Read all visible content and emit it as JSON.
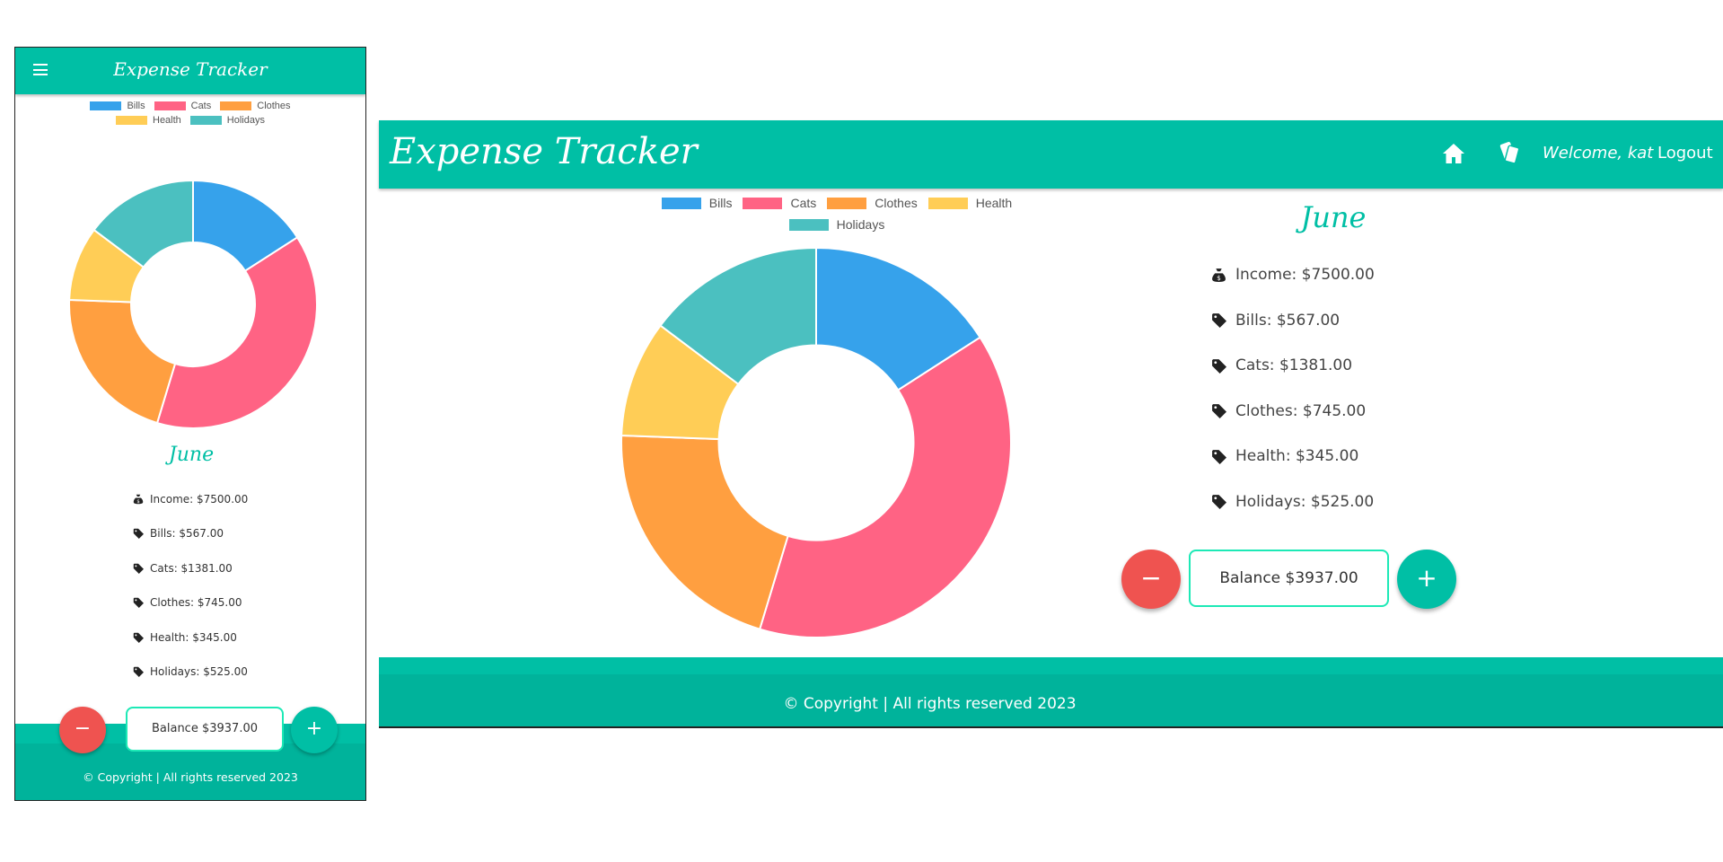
{
  "app": {
    "title": "Expense Tracker",
    "welcome": "Welcome, kat",
    "logout": "Logout"
  },
  "summary": {
    "month": "June",
    "rows": [
      {
        "icon": "money-bag-icon",
        "label": "Income: $7500.00"
      },
      {
        "icon": "tag-icon",
        "label": "Bills: $567.00"
      },
      {
        "icon": "tag-icon",
        "label": "Cats: $1381.00"
      },
      {
        "icon": "tag-icon",
        "label": "Clothes: $745.00"
      },
      {
        "icon": "tag-icon",
        "label": "Health: $345.00"
      },
      {
        "icon": "tag-icon",
        "label": "Holidays: $525.00"
      }
    ],
    "balance": "Balance $3937.00",
    "minus_label": "−",
    "plus_label": "+"
  },
  "footer": {
    "copyright": "© Copyright | All rights reserved 2023"
  },
  "colors": {
    "brand": "#00bfa5",
    "minus": "#ef5350",
    "balance_border": "#1de9b6"
  },
  "chart_data": {
    "type": "pie",
    "style": "doughnut",
    "legend": "top",
    "categories": [
      "Bills",
      "Cats",
      "Clothes",
      "Health",
      "Holidays"
    ],
    "values": [
      567,
      1381,
      745,
      345,
      525
    ],
    "colors": [
      "#36a2eb",
      "#ff6384",
      "#ff9f40",
      "#ffcd56",
      "#4bc0c0"
    ]
  }
}
